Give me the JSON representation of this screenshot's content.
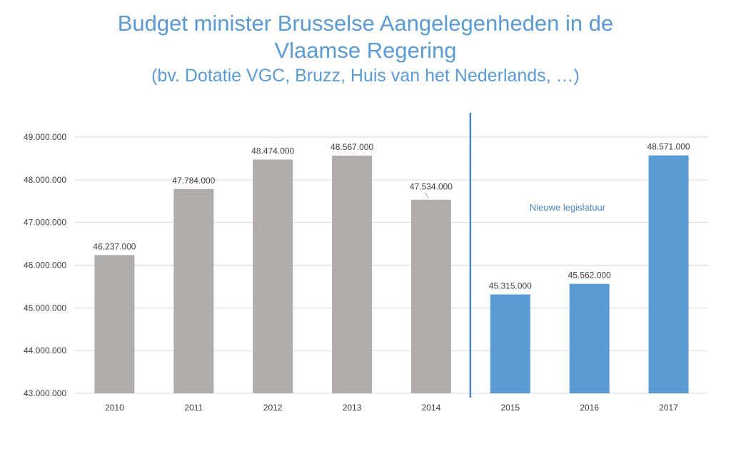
{
  "chart_data": {
    "type": "bar",
    "title": "Budget minister Brusselse Aangelegenheden in de",
    "title_line2": "Vlaamse Regering",
    "subtitle": "(bv. Dotatie VGC, Bruzz, Huis van het Nederlands, …)",
    "xlabel": "",
    "ylabel": "",
    "categories": [
      "2010",
      "2011",
      "2012",
      "2013",
      "2014",
      "2015",
      "2016",
      "2017"
    ],
    "values": [
      46237000,
      47784000,
      48474000,
      48567000,
      47534000,
      45315000,
      45562000,
      48571000
    ],
    "value_labels": [
      "46.237.000",
      "47.784.000",
      "48.474.000",
      "48.567.000",
      "47.534.000",
      "45.315.000",
      "45.562.000",
      "48.571.000"
    ],
    "ylim": [
      43000000,
      49000000
    ],
    "yticks": [
      43000000,
      44000000,
      45000000,
      46000000,
      47000000,
      48000000,
      49000000
    ],
    "ytick_labels": [
      "43.000.000",
      "44.000.000",
      "45.000.000",
      "46.000.000",
      "47.000.000",
      "48.000.000",
      "49.000.000"
    ],
    "grid": true,
    "legend": "none",
    "bar_colors": [
      "#b0acab",
      "#b0acab",
      "#b0acab",
      "#b0acab",
      "#b0acab",
      "#5b9bd5",
      "#5b9bd5",
      "#5b9bd5"
    ],
    "divider": {
      "between": [
        "2014",
        "2015"
      ],
      "color": "#4a86c5",
      "annotation": "Nieuwe legislatuur"
    }
  },
  "colors": {
    "title": "#5b9bd5",
    "gridline": "#d9d9d9",
    "axis_text": "#404040",
    "leader_line": "#a6a6a6"
  }
}
